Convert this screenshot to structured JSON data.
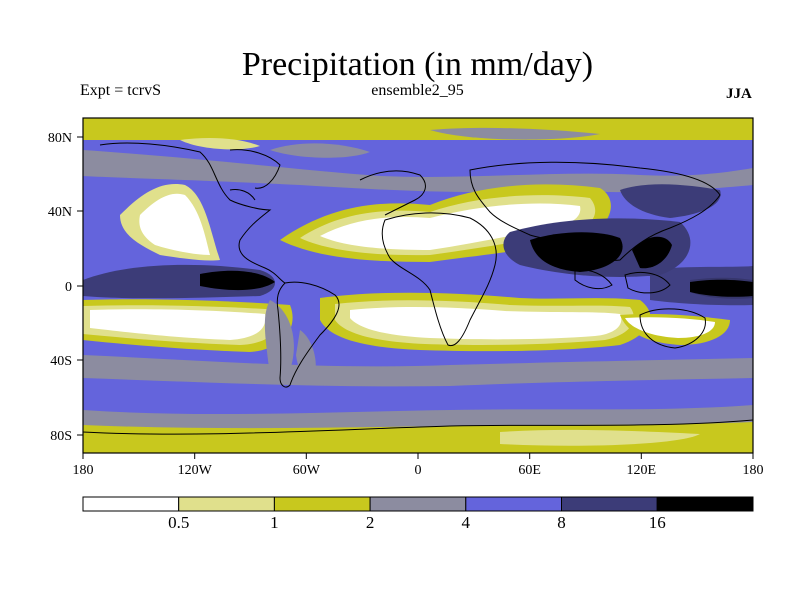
{
  "title": "Precipitation (in mm/day)",
  "experiment": "Expt = tcrvS",
  "dataset": "ensemble2_95",
  "season": "JJA",
  "lat_labels": [
    "80N",
    "40N",
    "0",
    "40S",
    "80S"
  ],
  "lon_labels": [
    "180",
    "120W",
    "60W",
    "0",
    "60E",
    "120E",
    "180"
  ],
  "colorbar": {
    "colors": [
      "#ffffff",
      "#e0e08c",
      "#c8c81e",
      "#8c8ca0",
      "#6464dc",
      "#3c3c78",
      "#000000"
    ],
    "labels": [
      "0.5",
      "1",
      "2",
      "4",
      "8",
      "16"
    ]
  },
  "palette": {
    "ocean_base": "#6464dc",
    "gray": "#8c8ca0",
    "olive": "#c8c81e",
    "light": "#e0e08c",
    "white": "#ffffff",
    "dark": "#3c3c78",
    "black": "#000000"
  }
}
